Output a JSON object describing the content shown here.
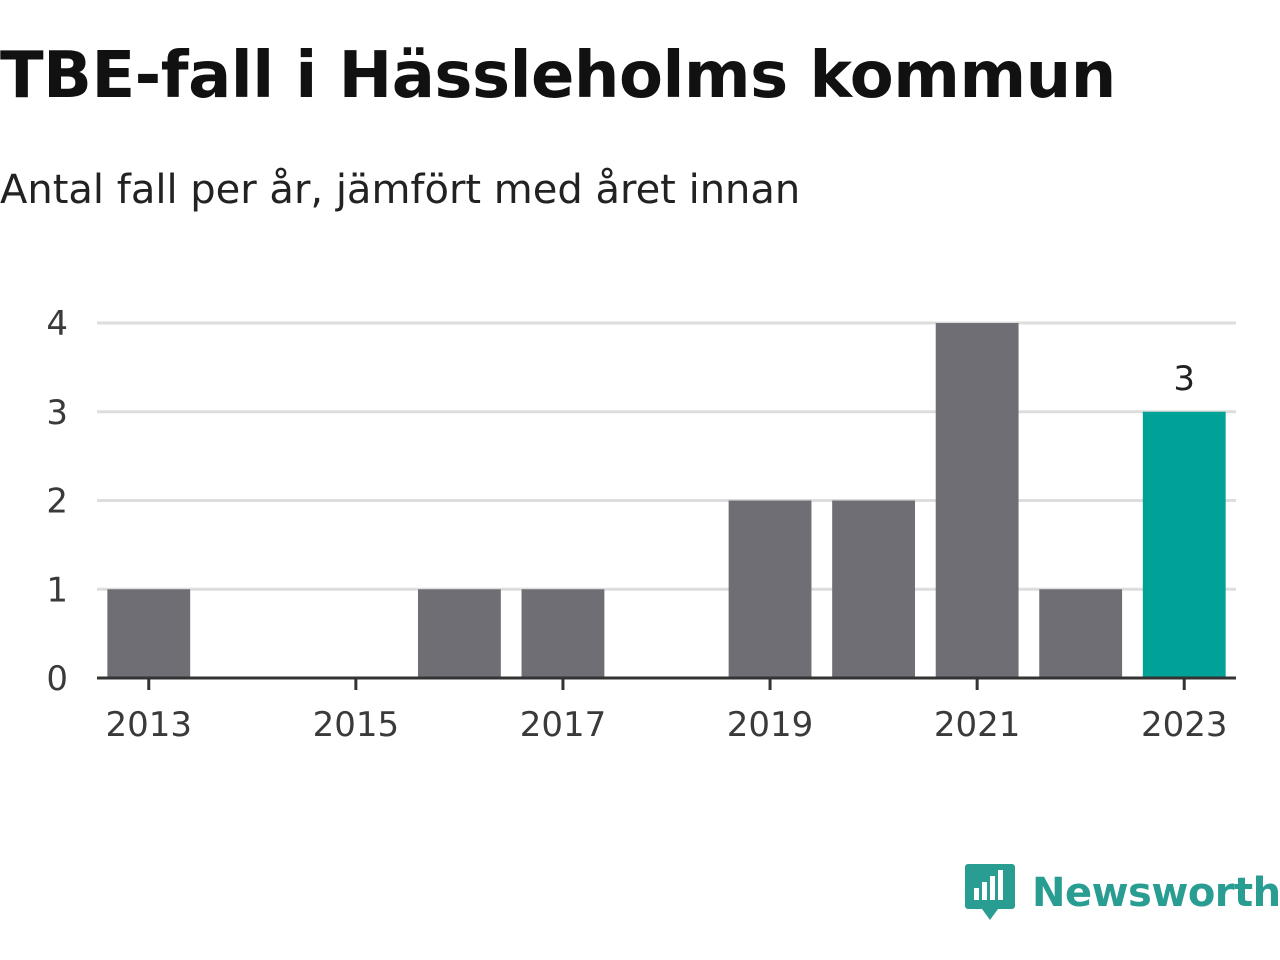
{
  "title": "TBE-fall i Hässleholms kommun",
  "subtitle": "Antal fall per år, jämfört med året innan",
  "brand": {
    "name": "Newsworthy",
    "icon": "newsworthy-logo-icon",
    "color": "#2a9d92"
  },
  "chart_data": {
    "type": "bar",
    "categories": [
      "2013",
      "2014",
      "2015",
      "2016",
      "2017",
      "2018",
      "2019",
      "2020",
      "2021",
      "2022",
      "2023"
    ],
    "values": [
      1,
      0,
      0,
      1,
      1,
      0,
      2,
      2,
      4,
      1,
      3
    ],
    "x_tick_labels": [
      "2013",
      "2015",
      "2017",
      "2019",
      "2021",
      "2023"
    ],
    "y_ticks": [
      0,
      1,
      2,
      3,
      4
    ],
    "ylim": [
      0,
      4
    ],
    "grid": true,
    "highlight": {
      "category": "2023",
      "label": "3"
    },
    "colors": {
      "bar": "#6f6e74",
      "highlight": "#00a298",
      "grid": "#dddddd",
      "axis": "#333333"
    }
  }
}
